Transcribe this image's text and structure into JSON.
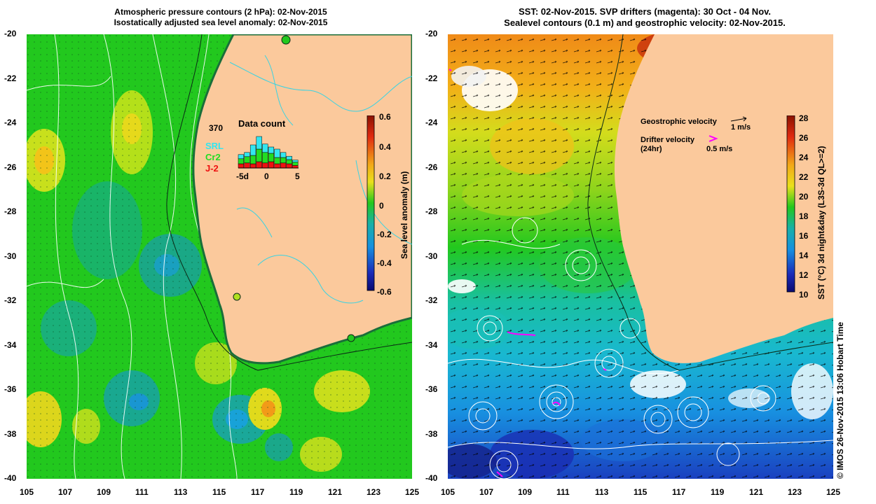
{
  "left_panel": {
    "title_line1": "Atmospheric pressure contours (2 hPa): 02-Nov-2015",
    "title_line2": "Isostatically adjusted sea level anomaly: 02-Nov-2015",
    "lat_ticks": [
      "-20",
      "-22",
      "-24",
      "-26",
      "-28",
      "-30",
      "-32",
      "-34",
      "-36",
      "-38",
      "-40"
    ],
    "lon_ticks": [
      "105",
      "107",
      "109",
      "111",
      "113",
      "115",
      "117",
      "119",
      "121",
      "123",
      "125"
    ],
    "colorbar": {
      "label": "Sea level anomaly (m)",
      "ticks": [
        "0.6",
        "0.4",
        "0.2",
        "0",
        "-0.2",
        "-0.4",
        "-0.6"
      ]
    },
    "inset": {
      "title": "Data count",
      "max_label": "370",
      "legend": [
        {
          "label": "SRL",
          "color": "#33e6f0"
        },
        {
          "label": "Cr2",
          "color": "#22dd22"
        },
        {
          "label": "J-2",
          "color": "#ee1111"
        }
      ],
      "x_ticks": [
        "-5d",
        "0",
        "5"
      ],
      "bars": [
        {
          "srl": 0.1,
          "cr2": 0.12,
          "j2": 0.1
        },
        {
          "srl": 0.1,
          "cr2": 0.15,
          "j2": 0.12
        },
        {
          "srl": 0.25,
          "cr2": 0.2,
          "j2": 0.1
        },
        {
          "srl": 0.3,
          "cr2": 0.3,
          "j2": 0.15
        },
        {
          "srl": 0.2,
          "cr2": 0.25,
          "j2": 0.12
        },
        {
          "srl": 0.15,
          "cr2": 0.2,
          "j2": 0.15
        },
        {
          "srl": 0.2,
          "cr2": 0.15,
          "j2": 0.1
        },
        {
          "srl": 0.12,
          "cr2": 0.13,
          "j2": 0.12
        },
        {
          "srl": 0.08,
          "cr2": 0.1,
          "j2": 0.1
        },
        {
          "srl": 0.05,
          "cr2": 0.08,
          "j2": 0.06
        }
      ]
    }
  },
  "right_panel": {
    "title_line1": "SST: 02-Nov-2015. SVP drifters (magenta): 30 Oct - 04 Nov.",
    "title_line2": "Sealevel contours (0.1 m) and geostrophic velocity: 02-Nov-2015.",
    "lat_ticks": [
      "-20",
      "-22",
      "-24",
      "-26",
      "-28",
      "-30",
      "-32",
      "-34",
      "-36",
      "-38",
      "-40"
    ],
    "lon_ticks": [
      "105",
      "107",
      "109",
      "111",
      "113",
      "115",
      "117",
      "119",
      "121",
      "123",
      "125"
    ],
    "colorbar": {
      "label": "SST (°C) 3d night&day (L3S-3d QL>=2)",
      "ticks": [
        "28",
        "26",
        "24",
        "22",
        "20",
        "18",
        "16",
        "14",
        "12",
        "10"
      ]
    },
    "legend": {
      "geostrophic_label": "Geostrophic velocity",
      "geostrophic_scale": "1 m/s",
      "drifter_label": "Drifter velocity",
      "drifter_sub": "(24hr)",
      "drifter_scale": "0.5 m/s"
    }
  },
  "copyright": "© IMOS 26-Nov-2015 13:06 Hobart Time",
  "colors": {
    "land": "#fbc99c",
    "coast": "#1a6e3a",
    "contour": "#ffffff",
    "drifter": "#ff00ff",
    "river": "#39d3e3"
  }
}
